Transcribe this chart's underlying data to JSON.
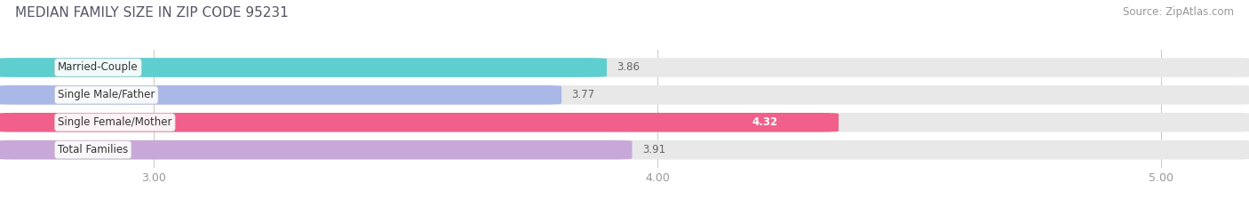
{
  "title": "MEDIAN FAMILY SIZE IN ZIP CODE 95231",
  "source": "Source: ZipAtlas.com",
  "categories": [
    "Married-Couple",
    "Single Male/Father",
    "Single Female/Mother",
    "Total Families"
  ],
  "values": [
    3.86,
    3.77,
    4.32,
    3.91
  ],
  "bar_colors": [
    "#5ecece",
    "#aab8e8",
    "#f0608a",
    "#c8a8d8"
  ],
  "label_colors": [
    "#000000",
    "#000000",
    "#ffffff",
    "#000000"
  ],
  "value_label_inside": [
    false,
    false,
    true,
    false
  ],
  "xlim_left": 2.72,
  "xlim_right": 5.15,
  "xticks": [
    3.0,
    4.0,
    5.0
  ],
  "xtick_labels": [
    "3.00",
    "4.00",
    "5.00"
  ],
  "bar_height": 0.62,
  "background_color": "#ffffff",
  "bar_bg_color": "#e8e8e8",
  "value_fontsize": 8.5,
  "label_fontsize": 8.5,
  "title_fontsize": 11,
  "source_fontsize": 8.5,
  "title_color": "#555566",
  "source_color": "#999999",
  "label_bg_color": "#ffffff",
  "tick_color": "#999999",
  "grid_color": "#cccccc"
}
